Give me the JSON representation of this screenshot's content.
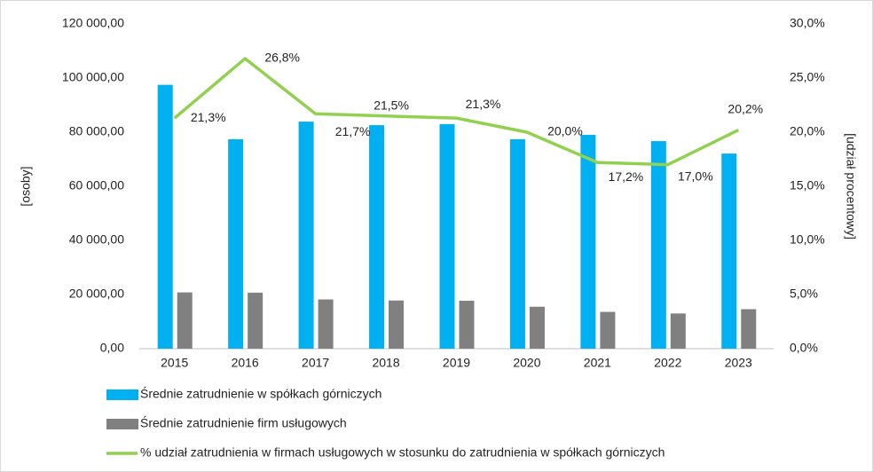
{
  "chart_data": {
    "type": "bar_line",
    "categories": [
      "2015",
      "2016",
      "2017",
      "2018",
      "2019",
      "2020",
      "2021",
      "2022",
      "2023"
    ],
    "series": [
      {
        "name": "Średnie zatrudnienie w spółkach górniczych",
        "color": "#00b0f0",
        "type": "bar",
        "values": [
          97500,
          77400,
          83900,
          82600,
          83000,
          77400,
          79000,
          76700,
          72100
        ]
      },
      {
        "name": "Średnie zatrudnienie firm usługowych",
        "color": "#808080",
        "type": "bar",
        "values": [
          20800,
          20700,
          18200,
          17800,
          17700,
          15500,
          13600,
          13000,
          14600
        ]
      },
      {
        "name": "% udział zatrudnienia w firmach usługowych w stosunku do zatrudnienia w spółkach górniczych",
        "color": "#92d050",
        "type": "line",
        "axis": "y2",
        "values": [
          21.3,
          26.8,
          21.7,
          21.5,
          21.3,
          20.0,
          17.2,
          17.0,
          20.2
        ],
        "value_labels": [
          "21,3%",
          "26,8%",
          "21,7%",
          "21,5%",
          "21,3%",
          "20,0%",
          "17,2%",
          "17,0%",
          "20,2%"
        ]
      }
    ],
    "y_label": "[osoby]",
    "y2_label": "[udział procentowy]",
    "ylim": [
      0,
      120000
    ],
    "yticks": [
      {
        "value": 0,
        "label": "0,00"
      },
      {
        "value": 20000,
        "label": "20 000,00"
      },
      {
        "value": 40000,
        "label": "40 000,00"
      },
      {
        "value": 60000,
        "label": "60 000,00"
      },
      {
        "value": 80000,
        "label": "80 000,00"
      },
      {
        "value": 100000,
        "label": "100 000,00"
      },
      {
        "value": 120000,
        "label": "120 000,00"
      }
    ],
    "y2lim": [
      0,
      30
    ],
    "y2ticks": [
      {
        "value": 0,
        "label": "0,0%"
      },
      {
        "value": 5,
        "label": "5,0%"
      },
      {
        "value": 10,
        "label": "10,0%"
      },
      {
        "value": 15,
        "label": "15,0%"
      },
      {
        "value": 20,
        "label": "20,0%"
      },
      {
        "value": 25,
        "label": "25,0%"
      },
      {
        "value": 30,
        "label": "30,0%"
      }
    ],
    "legend": "bottom-left"
  }
}
